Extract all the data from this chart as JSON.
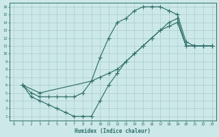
{
  "title": "",
  "xlabel": "Humidex (Indice chaleur)",
  "ylabel": "",
  "bg_color": "#cce8e8",
  "grid_color": "#aacccc",
  "line_color": "#2e6e68",
  "xlim": [
    -0.5,
    23.5
  ],
  "ylim": [
    1.5,
    16.5
  ],
  "xticks": [
    0,
    1,
    2,
    3,
    4,
    5,
    6,
    7,
    8,
    9,
    10,
    11,
    12,
    13,
    14,
    15,
    16,
    17,
    18,
    19,
    20,
    21,
    22,
    23
  ],
  "yticks": [
    2,
    3,
    4,
    5,
    6,
    7,
    8,
    9,
    10,
    11,
    12,
    13,
    14,
    15,
    16
  ],
  "curve1_x": [
    1,
    2,
    3,
    4,
    5,
    6,
    7,
    8,
    9,
    10,
    11,
    12,
    13,
    14,
    15,
    16,
    17,
    18,
    19,
    20,
    21,
    22,
    23
  ],
  "curve1_y": [
    6,
    5,
    4.5,
    4.5,
    4.5,
    4.5,
    4.5,
    5,
    6.5,
    9.5,
    12,
    14,
    14.5,
    15.5,
    16,
    16,
    16,
    15.5,
    15,
    11.5,
    11,
    11,
    11
  ],
  "curve2_x": [
    1,
    3,
    9,
    10,
    11,
    12,
    13,
    14,
    15,
    16,
    17,
    18,
    19,
    20,
    21,
    22,
    23
  ],
  "curve2_y": [
    6,
    5,
    6.5,
    7,
    7.5,
    8,
    9,
    10,
    11,
    12,
    13,
    14,
    14.5,
    11,
    11,
    11,
    11
  ],
  "curve3_x": [
    1,
    2,
    3,
    4,
    5,
    6,
    7,
    8,
    9,
    10,
    11,
    12,
    13,
    14,
    15,
    16,
    17,
    18,
    19,
    20,
    21,
    22,
    23
  ],
  "curve3_y": [
    6,
    4.5,
    4,
    3.5,
    3,
    2.5,
    2,
    2,
    2,
    4,
    6,
    7.5,
    9,
    10,
    11,
    12,
    13,
    13.5,
    14,
    11,
    11,
    11,
    11
  ]
}
